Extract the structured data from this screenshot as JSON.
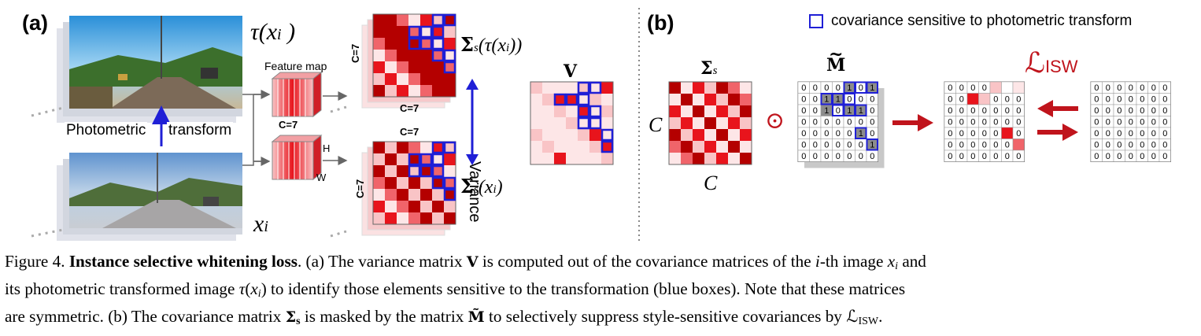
{
  "panels": {
    "a": {
      "label": "(a)",
      "tau_label": "τ(x",
      "tau_sub": "i",
      "tau_close": " )",
      "xi_label": "x",
      "xi_sub": "i",
      "photometric_label": "Photometric",
      "transform_label": "transform",
      "feature_map_label": "Feature map",
      "c7_label": "C=7",
      "h_label": "H",
      "w_label": "W",
      "cov_c7_vertical": "C=7",
      "cov_c7_bottom": "C=7",
      "cov_c7_top": "C=7",
      "cov_c7_vertical_2": "C=7",
      "sigma_tau_label": "Σ",
      "sigma_tau_sub": "s",
      "sigma_tau_arg": "(τ(x",
      "sigma_tau_arg_sub": "i",
      "sigma_tau_close": "))",
      "sigma_x_label": "Σ",
      "sigma_x_sub": "s",
      "sigma_x_arg": "(x",
      "sigma_x_arg_sub": "i",
      "sigma_x_close": ")",
      "variance_label": "Variance",
      "v_label": "V"
    },
    "b": {
      "label": "(b)",
      "legend_text": "covariance sensitive to photometric transform",
      "sigma_label": "Σ",
      "sigma_sub": "s",
      "c_left": "C",
      "c_bottom": "C",
      "m_label": "M",
      "m_tilde": "~",
      "odot": "⊙",
      "loss_label": "ℒ",
      "loss_sub": "ISW",
      "mask_matrix": [
        [
          "0",
          "0",
          "0",
          "0",
          "1",
          "0",
          "1"
        ],
        [
          "0",
          "0",
          "1",
          "1",
          "0",
          "0",
          "0"
        ],
        [
          "0",
          "0",
          "1",
          "0",
          "1",
          "1",
          "0"
        ],
        [
          "0",
          "0",
          "0",
          "0",
          "0",
          "0",
          "0"
        ],
        [
          "0",
          "0",
          "0",
          "0",
          "0",
          "1",
          "0"
        ],
        [
          "0",
          "0",
          "0",
          "0",
          "0",
          "0",
          "1"
        ],
        [
          "0",
          "0",
          "0",
          "0",
          "0",
          "0",
          "0"
        ]
      ],
      "result_matrix": [
        [
          "0",
          "0",
          "0",
          "0",
          "",
          "",
          ""
        ],
        [
          "0",
          "0",
          "",
          "",
          "0",
          "0",
          "0"
        ],
        [
          "0",
          "0",
          "0",
          "0",
          "0",
          "0",
          "0"
        ],
        [
          "0",
          "0",
          "0",
          "0",
          "0",
          "0",
          "0"
        ],
        [
          "0",
          "0",
          "0",
          "0",
          "0",
          "",
          "0"
        ],
        [
          "0",
          "0",
          "0",
          "0",
          "0",
          "0",
          ""
        ],
        [
          "0",
          "0",
          "0",
          "0",
          "0",
          "0",
          "0"
        ]
      ],
      "zero_matrix": [
        [
          "0",
          "0",
          "0",
          "0",
          "0",
          "0",
          "0"
        ],
        [
          "0",
          "0",
          "0",
          "0",
          "0",
          "0",
          "0"
        ],
        [
          "0",
          "0",
          "0",
          "0",
          "0",
          "0",
          "0"
        ],
        [
          "0",
          "0",
          "0",
          "0",
          "0",
          "0",
          "0"
        ],
        [
          "0",
          "0",
          "0",
          "0",
          "0",
          "0",
          "0"
        ],
        [
          "0",
          "0",
          "0",
          "0",
          "0",
          "0",
          "0"
        ],
        [
          "0",
          "0",
          "0",
          "0",
          "0",
          "0",
          "0"
        ]
      ]
    }
  },
  "colors": {
    "blue": "#1f1fd6",
    "red_dark": "#b40000",
    "red": "#e8141c",
    "red_mid": "#f0646a",
    "red_light": "#f9c4c6",
    "red_pale": "#fde6e7",
    "arrow_red": "#c0141c",
    "gray_cell": "#8c8c8c"
  },
  "caption": {
    "l1_prefix": "Figure 4. ",
    "l1_bold": "Instance selective whitening loss",
    "l1_a": ". (a) The variance matrix ",
    "l1_v": "V",
    "l1_b": " is computed out of the covariance matrices of the ",
    "l1_i": "i",
    "l1_c": "-th image ",
    "l1_x": "x",
    "l1_xsub": "i",
    "l1_d": " and",
    "l2_a": "its photometric transformed image ",
    "l2_tau": "τ",
    "l2_b": "(",
    "l2_x": "x",
    "l2_xsub": "i",
    "l2_c": ") to identify those elements sensitive to the transformation (blue boxes). Note that these matrices",
    "l3_a": "are symmetric. (b) The covariance matrix ",
    "l3_sigma": "Σ",
    "l3_sigmasub": "s",
    "l3_b": " is masked by the matrix ",
    "l3_m": "M̃",
    "l3_c": " to selectively suppress style-sensitive covariances by ",
    "l3_l": "ℒ",
    "l3_lsub": "ISW",
    "l3_d": "."
  }
}
